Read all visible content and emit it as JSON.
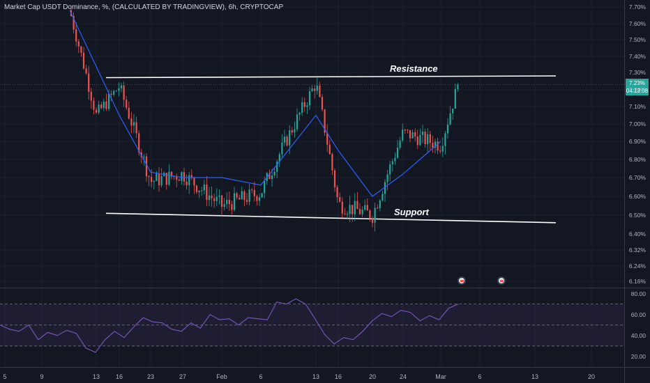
{
  "title": "Market Cap USDT Dominance, %, (CALCULATED BY TRADINGVIEW), 6h, CRYPTOCAP",
  "colors": {
    "background": "#131722",
    "bull": "#26a69a",
    "bear": "#ef5350",
    "ma_line": "#2962ff",
    "rsi_line": "#7e57c2",
    "trendline": "#ffffff"
  },
  "price_badge": {
    "value": "7.23%",
    "countdown": "04:13:08"
  },
  "annotations": {
    "resistance": "Resistance",
    "support": "Support"
  },
  "chart_data": [
    {
      "type": "candlestick",
      "title": "Market Cap USDT Dominance, %, (CALCULATED BY TRADINGVIEW), 6h, CRYPTOCAP",
      "y_unit": "%",
      "ylim": [
        6.14,
        7.72
      ],
      "y_ticks": [
        "7.70%",
        "7.60%",
        "7.50%",
        "7.40%",
        "7.30%",
        "7.20%",
        "7.10%",
        "7.00%",
        "6.90%",
        "6.80%",
        "6.70%",
        "6.60%",
        "6.50%",
        "6.40%",
        "6.32%",
        "6.24%",
        "6.16%"
      ],
      "x_ticks": [
        "5",
        "9",
        "13",
        "16",
        "23",
        "27",
        "Feb",
        "6",
        "13",
        "16",
        "20",
        "24",
        "Mar",
        "6",
        "13",
        "20"
      ],
      "last_price": 7.23,
      "key_points": [
        {
          "x": "early Jan",
          "y": 7.68
        },
        {
          "x": "13",
          "y": 7.05
        },
        {
          "x": "16",
          "y": 7.22
        },
        {
          "x": "23",
          "y": 6.68
        },
        {
          "x": "27",
          "y": 6.72
        },
        {
          "x": "Feb",
          "y": 6.55
        },
        {
          "x": "6",
          "y": 6.62
        },
        {
          "x": "13",
          "y": 7.24
        },
        {
          "x": "16",
          "y": 6.56
        },
        {
          "x": "20",
          "y": 6.5
        },
        {
          "x": "24",
          "y": 6.95
        },
        {
          "x": "Mar",
          "y": 6.88
        },
        {
          "x": "last",
          "y": 7.23
        }
      ],
      "moving_average": [
        {
          "x": "early Jan",
          "y": 7.68
        },
        {
          "x": "16",
          "y": 7.05
        },
        {
          "x": "23",
          "y": 6.73
        },
        {
          "x": "27",
          "y": 6.7
        },
        {
          "x": "Feb",
          "y": 6.7
        },
        {
          "x": "6",
          "y": 6.66
        },
        {
          "x": "13",
          "y": 7.05
        },
        {
          "x": "16",
          "y": 6.85
        },
        {
          "x": "20",
          "y": 6.6
        },
        {
          "x": "24",
          "y": 6.72
        },
        {
          "x": "Mar",
          "y": 6.9
        }
      ],
      "trendlines": [
        {
          "name": "Resistance",
          "from": {
            "x": "16",
            "y": 7.27
          },
          "to": {
            "x": "13 Mar",
            "y": 7.28
          }
        },
        {
          "name": "Support",
          "from": {
            "x": "16",
            "y": 6.51
          },
          "to": {
            "x": "13 Mar",
            "y": 6.46
          }
        }
      ]
    },
    {
      "type": "line",
      "title": "",
      "ylim": [
        10,
        85
      ],
      "y_ticks": [
        "80.00",
        "60.00",
        "40.00",
        "20.00"
      ],
      "bands": [
        70,
        50,
        30
      ],
      "series": [
        {
          "values": [
            50,
            46,
            44,
            50,
            36,
            43,
            40,
            45,
            42,
            28,
            24,
            36,
            44,
            38,
            48,
            57,
            53,
            52,
            46,
            44,
            52,
            47,
            60,
            55,
            56,
            50,
            57,
            56,
            55,
            72,
            70,
            75,
            70,
            56,
            41,
            32,
            38,
            36,
            44,
            54,
            61,
            58,
            64,
            62,
            54,
            59,
            55,
            66,
            70
          ]
        }
      ]
    }
  ]
}
